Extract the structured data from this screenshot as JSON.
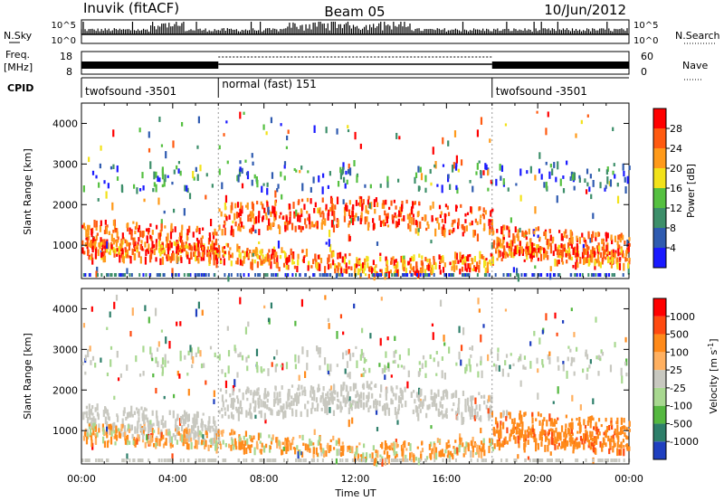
{
  "header": {
    "station": "Inuvik (fitACF)",
    "beam": "Beam 05",
    "date": "10/Jun/2012"
  },
  "strip_labels": {
    "nsky": "N.Sky",
    "nsearch": "N.Search",
    "freq_line1": "Freq.",
    "freq_line2": "[MHz]",
    "nave": "Nave",
    "cpid": "CPID",
    "nsky_ticks": [
      "10^5",
      "10^0"
    ],
    "nsearch_ticks": [
      "10^5",
      "10^0"
    ],
    "freq_ticks": [
      "18",
      "8"
    ],
    "nave_ticks": [
      "60",
      "0"
    ]
  },
  "cpid_segments": [
    {
      "label": "twofsound -3501",
      "start_hour": 0,
      "end_hour": 6
    },
    {
      "label": "normal (fast) 151",
      "start_hour": 6,
      "end_hour": 18
    },
    {
      "label": "twofsound -3501",
      "start_hour": 18,
      "end_hour": 24
    }
  ],
  "chart_data": {
    "type": "heatmap",
    "xlabel": "Time UT",
    "x_ticks": [
      "00:00",
      "04:00",
      "08:00",
      "12:00",
      "16:00",
      "20:00",
      "00:00"
    ],
    "x_range_hours": [
      0,
      24
    ],
    "ylabel": "Slant Range [km]",
    "y_ticks": [
      1000,
      2000,
      3000,
      4000
    ],
    "y_range": [
      180,
      4500
    ],
    "panels": [
      {
        "name": "power",
        "colorbar_label": "Power [dB]",
        "colorbar_ticks": [
          4,
          8,
          12,
          16,
          20,
          24,
          28
        ],
        "colorbar_colors": [
          "#1a1aff",
          "#2f5bb0",
          "#3d8f6a",
          "#55c040",
          "#f2e21a",
          "#ff9a1a",
          "#ff5a10",
          "#ff0000"
        ]
      },
      {
        "name": "velocity",
        "colorbar_label": "Velocity [m s^-1]",
        "colorbar_ticks": [
          "1000",
          "500",
          "100",
          "25",
          "-25",
          "-100",
          "-500",
          "-1000"
        ],
        "colorbar_colors": [
          "#1f3fbf",
          "#2e7f6a",
          "#55b840",
          "#a8d890",
          "#c8c8c0",
          "#ffb060",
          "#ff8a1a",
          "#ff4a10",
          "#ff0000"
        ]
      }
    ]
  }
}
